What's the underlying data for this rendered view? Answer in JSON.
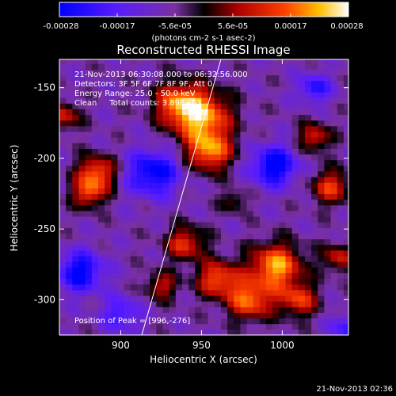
{
  "chart_data": {
    "type": "heatmap",
    "title": "Reconstructed RHESSI Image",
    "xlabel": "Heliocentric X (arcsec)",
    "ylabel": "Heliocentric Y (arcsec)",
    "xlim": [
      862,
      1041
    ],
    "ylim": [
      -325,
      -130
    ],
    "xticks": [
      900,
      950,
      1000
    ],
    "yticks": [
      -150,
      -200,
      -250,
      -300
    ],
    "colorbar": {
      "ticks": [
        "-0.00028",
        "-0.00017",
        "-5.6e-05",
        "5.6e-05",
        "0.00017",
        "0.00028"
      ],
      "label": "(photons cm-2 s-1 asec-2)",
      "range": [
        -0.00028,
        0.00028
      ]
    },
    "annotations": [
      "21-Nov-2013 06:30:08.000 to 06:32:56.000",
      "Detectors: 3F 5F 6F 7F 8F 9F, Att 0",
      "Energy Range: 25.0 - 50.0 keV",
      "Clean     Total counts: 3.89E+03"
    ],
    "peak_label": "Position of Peak = [996,-276]",
    "peak_position": [
      996,
      -276
    ],
    "limb_line": [
      [
        913,
        -325
      ],
      [
        962,
        -130
      ]
    ],
    "footer_date": "21-Nov-2013 02:36"
  },
  "colors": {
    "background": "#000000",
    "text": "#ffffff",
    "limb": "#ffffff"
  }
}
